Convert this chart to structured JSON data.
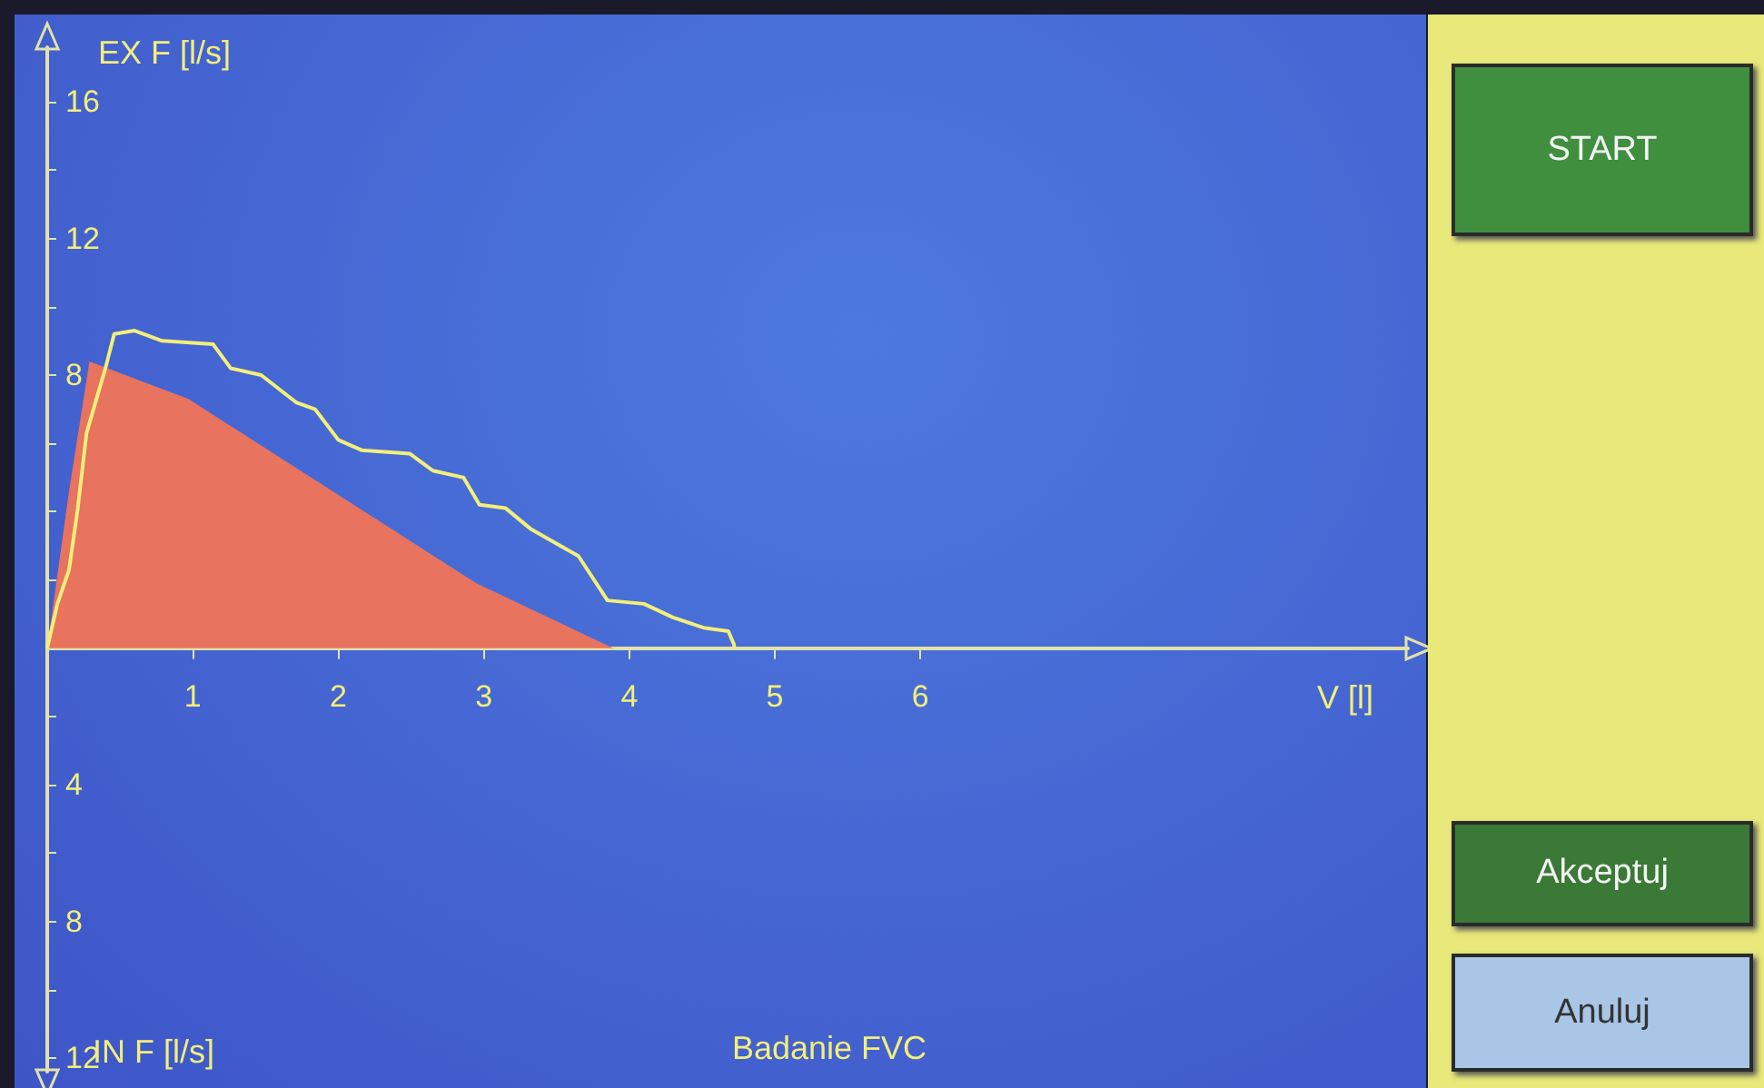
{
  "chart_data": {
    "type": "line",
    "title": "Badanie FVC",
    "xlabel": "V [l]",
    "ylabel": "EX F [l/s]",
    "annotations": [
      "IN F [l/s]",
      "START",
      "Akceptuj",
      "Anuluj"
    ],
    "xlim": [
      0,
      9.35
    ],
    "ylim": [
      -12.4,
      17.6
    ],
    "xticks": [
      1,
      2,
      3,
      4,
      5,
      6
    ],
    "yticks": [
      {
        "value": -12,
        "label": "12"
      },
      {
        "value": -10,
        "label": null
      },
      {
        "value": -8,
        "label": "8"
      },
      {
        "value": -6,
        "label": null
      },
      {
        "value": -4,
        "label": "4"
      },
      {
        "value": -2,
        "label": null
      },
      {
        "value": 2,
        "label": null
      },
      4,
      {
        "value": 6,
        "label": null
      },
      8,
      {
        "value": 10,
        "label": null
      },
      12,
      {
        "value": 14,
        "label": null
      },
      16
    ],
    "grid": false,
    "series": [
      {
        "type": "area",
        "color": "#e8735e",
        "x": [
          0,
          0.15,
          0.29,
          0.97,
          1.96,
          2.95,
          3.89
        ],
        "values": [
          0,
          4.6,
          8.4,
          7.3,
          4.6,
          1.9,
          0
        ]
      },
      {
        "type": "line",
        "color": "#f2ef7a",
        "x": [
          0,
          0.07,
          0.15,
          0.21,
          0.27,
          0.4,
          0.46,
          0.6,
          0.79,
          1.14,
          1.26,
          1.47,
          1.71,
          1.84,
          2.0,
          2.16,
          2.49,
          2.65,
          2.86,
          2.97,
          3.15,
          3.32,
          3.65,
          3.85,
          4.1,
          4.3,
          4.51,
          4.68,
          4.72,
          4.72
        ],
        "values": [
          0,
          1.3,
          2.3,
          4.1,
          6.3,
          8.2,
          9.2,
          9.3,
          9.0,
          8.9,
          8.2,
          8.0,
          7.2,
          7.0,
          6.1,
          5.8,
          5.7,
          5.2,
          5.0,
          4.2,
          4.1,
          3.5,
          2.7,
          1.4,
          1.3,
          0.9,
          0.6,
          0.5,
          0.1,
          0
        ]
      }
    ]
  }
}
